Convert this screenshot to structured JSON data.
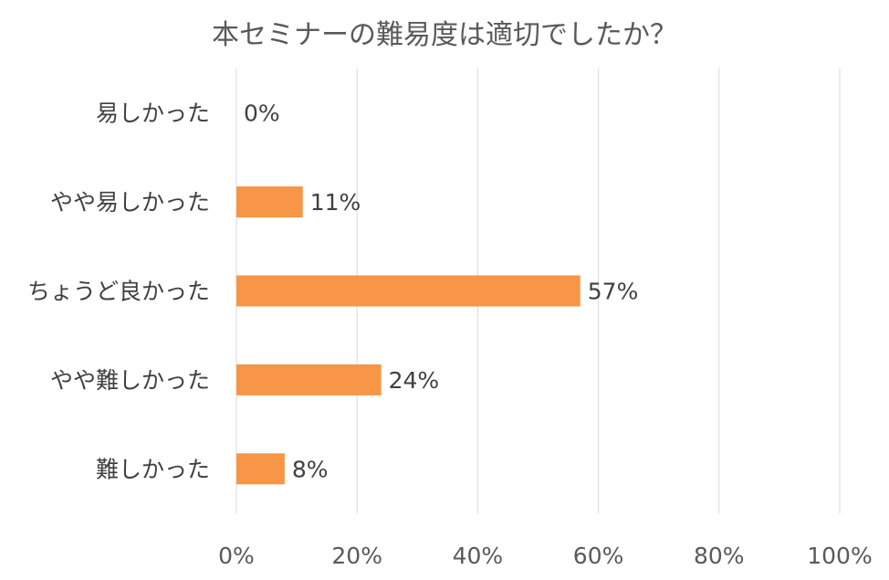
{
  "chart_data": {
    "type": "bar",
    "orientation": "horizontal",
    "title": "本セミナーの難易度は適切でしたか？",
    "categories": [
      "易しかった",
      "やや易しかった",
      "ちょうど良かった",
      "やや難しかった",
      "難しかった"
    ],
    "values": [
      0,
      11,
      57,
      24,
      8
    ],
    "data_labels": [
      "0%",
      "11%",
      "57%",
      "24%",
      "8%"
    ],
    "xlim": [
      0,
      100
    ],
    "x_ticks": [
      "0%",
      "20%",
      "40%",
      "60%",
      "80%",
      "100%"
    ],
    "grid": true,
    "legend": "none",
    "bar_color": "#F79646"
  }
}
